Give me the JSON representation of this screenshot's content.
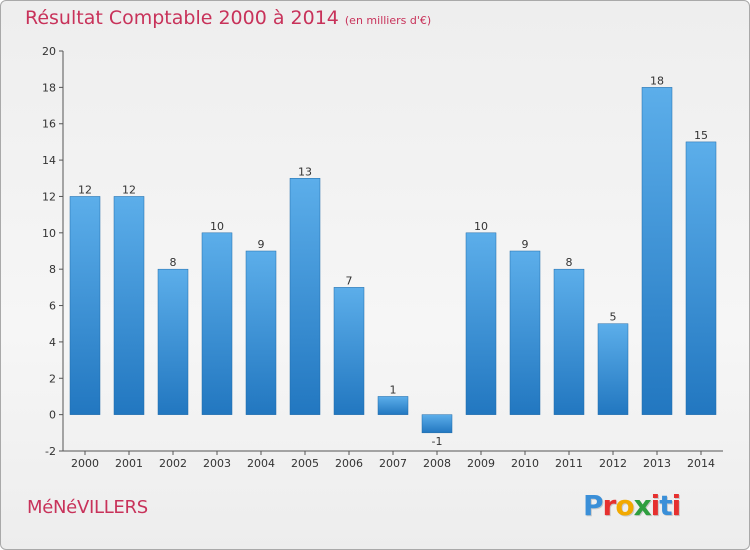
{
  "title": "Résultat Comptable 2000 à 2014",
  "subtitle": "(en milliers d'€)",
  "commune": "MéNéVILLERS",
  "logo": {
    "letters": [
      "P",
      "r",
      "o",
      "x",
      "i",
      "t",
      "i"
    ],
    "colors": [
      "#3a8fd8",
      "#e6302f",
      "#f2a900",
      "#2e9e3f",
      "#e6302f",
      "#3a8fd8",
      "#e6302f"
    ]
  },
  "chart_data": {
    "type": "bar",
    "title": "Résultat Comptable 2000 à 2014",
    "subtitle": "(en milliers d'€)",
    "categories": [
      "2000",
      "2001",
      "2002",
      "2003",
      "2004",
      "2005",
      "2006",
      "2007",
      "2008",
      "2009",
      "2010",
      "2011",
      "2012",
      "2013",
      "2014"
    ],
    "values": [
      12,
      12,
      8,
      10,
      9,
      13,
      7,
      1,
      -1,
      10,
      9,
      8,
      5,
      18,
      15
    ],
    "ylim": [
      -2,
      20
    ],
    "yticks": [
      -2,
      0,
      2,
      4,
      6,
      8,
      10,
      12,
      14,
      16,
      18,
      20
    ],
    "xlabel": "",
    "ylabel": "",
    "grid": false,
    "bar_color_top": "#5caeea",
    "bar_color_bottom": "#2277c0"
  }
}
